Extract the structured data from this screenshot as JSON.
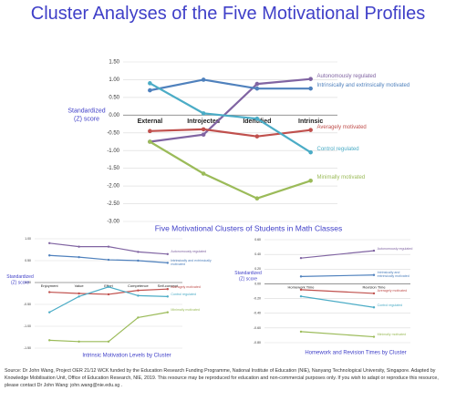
{
  "title": "Cluster Analyses of the Five Motivational Profiles",
  "source": "Source: Dr John Wang, Project OER 21/12 WCK funded by the Education Research Funding Programme, National Institute of Education (NIE), Nanyang Technological University, Singapore. Adapted by Knowledge Mobilisation Unit, Office of Education Research, NIE, 2019. This resource may be reproduced for education and non-commercial purposes only. If you wish to adapt or reproduce this resource, please contact Dr John Wang: john.wang@nie.edu.sg .",
  "chart_data": [
    {
      "type": "line",
      "title": "Five Motivational Clusters of Students in Math Classes",
      "ylabel": [
        "Standardized",
        "(Z) score"
      ],
      "categories": [
        "External",
        "Introjected",
        "Identified",
        "Intrinsic"
      ],
      "ylim": [
        -3,
        1.5
      ],
      "yticks": [
        {
          "value": -3,
          "label": "-3.00"
        },
        {
          "value": -2.5,
          "label": "-2.50"
        },
        {
          "value": -2,
          "label": "-2.00"
        },
        {
          "value": -1.5,
          "label": "-1.50"
        },
        {
          "value": -1,
          "label": "-1.00"
        },
        {
          "value": -0.5,
          "label": "-0.50"
        },
        {
          "value": 0,
          "label": "0.00"
        },
        {
          "value": 0.5,
          "label": "0.50"
        },
        {
          "value": 1,
          "label": "1.00"
        },
        {
          "value": 1.5,
          "label": "1.50"
        }
      ],
      "grid": true,
      "series": [
        {
          "name": "Autonomously regulated",
          "color": "#8064a2",
          "values": [
            -0.75,
            -0.55,
            0.88,
            1.02
          ]
        },
        {
          "name": "Intrinsically and extrinsically motivated",
          "color": "#4f81bd",
          "values": [
            0.7,
            1.0,
            0.75,
            0.75
          ]
        },
        {
          "name": "Averagely motivated",
          "color": "#c0504d",
          "values": [
            -0.45,
            -0.4,
            -0.6,
            -0.42
          ]
        },
        {
          "name": "Control regulated",
          "color": "#4bacc6",
          "values": [
            0.9,
            0.05,
            -0.1,
            -1.05
          ]
        },
        {
          "name": "Minimally motivated",
          "color": "#9bbb59",
          "values": [
            -0.75,
            -1.65,
            -2.35,
            -1.85
          ]
        }
      ]
    },
    {
      "type": "line",
      "title": "Intrinsic Motivation Levels by Cluster",
      "ylabel": [
        "Standardized",
        "(Z) score"
      ],
      "categories": [
        "Enjoyment",
        "Value",
        "Effort",
        "Competence",
        "Self-concept"
      ],
      "ylim": [
        -1.5,
        1
      ],
      "yticks": [
        {
          "value": -1.5,
          "label": "-1.50"
        },
        {
          "value": -1,
          "label": "-1.00"
        },
        {
          "value": -0.5,
          "label": "-0.50"
        },
        {
          "value": 0,
          "label": "0.00"
        },
        {
          "value": 0.5,
          "label": "0.50"
        },
        {
          "value": 1,
          "label": "1.00"
        }
      ],
      "grid": true,
      "series": [
        {
          "name": "Autonomously regulated",
          "color": "#8064a2",
          "values": [
            0.9,
            0.82,
            0.82,
            0.7,
            0.65
          ]
        },
        {
          "name": "Intrinsically and extrinsically motivated",
          "color": "#4f81bd",
          "values": [
            0.62,
            0.58,
            0.52,
            0.5,
            0.45
          ]
        },
        {
          "name": "Averagely motivated",
          "color": "#c0504d",
          "values": [
            -0.22,
            -0.25,
            -0.27,
            -0.18,
            -0.15
          ]
        },
        {
          "name": "Control regulated",
          "color": "#4bacc6",
          "values": [
            -0.68,
            -0.32,
            -0.1,
            -0.3,
            -0.32
          ]
        },
        {
          "name": "Minimally motivated",
          "color": "#9bbb59",
          "values": [
            -1.32,
            -1.35,
            -1.35,
            -0.8,
            -0.68
          ]
        }
      ]
    },
    {
      "type": "line",
      "title": "Homework and Revision Times by Cluster",
      "ylabel": [
        "Standardized",
        "(Z) score"
      ],
      "categories": [
        "Homework Time",
        "Revision Time"
      ],
      "ylim": [
        -0.8,
        0.6
      ],
      "yticks": [
        {
          "value": -0.8,
          "label": "-0.80"
        },
        {
          "value": -0.6,
          "label": "-0.60"
        },
        {
          "value": -0.4,
          "label": "-0.40"
        },
        {
          "value": -0.2,
          "label": "-0.20"
        },
        {
          "value": 0,
          "label": "0.00"
        },
        {
          "value": 0.2,
          "label": "0.20"
        },
        {
          "value": 0.4,
          "label": "0.40"
        },
        {
          "value": 0.6,
          "label": "0.60"
        }
      ],
      "grid": true,
      "series": [
        {
          "name": "Autonomously regulated",
          "color": "#8064a2",
          "values": [
            0.35,
            0.45
          ]
        },
        {
          "name": "Intrinsically and extrinsically motivated",
          "color": "#4f81bd",
          "values": [
            0.1,
            0.12
          ]
        },
        {
          "name": "Averagely motivated",
          "color": "#c0504d",
          "values": [
            -0.08,
            -0.13
          ]
        },
        {
          "name": "Control regulated",
          "color": "#4bacc6",
          "values": [
            -0.17,
            -0.32
          ]
        },
        {
          "name": "Minimally motivated",
          "color": "#9bbb59",
          "values": [
            -0.65,
            -0.72
          ]
        }
      ]
    }
  ]
}
